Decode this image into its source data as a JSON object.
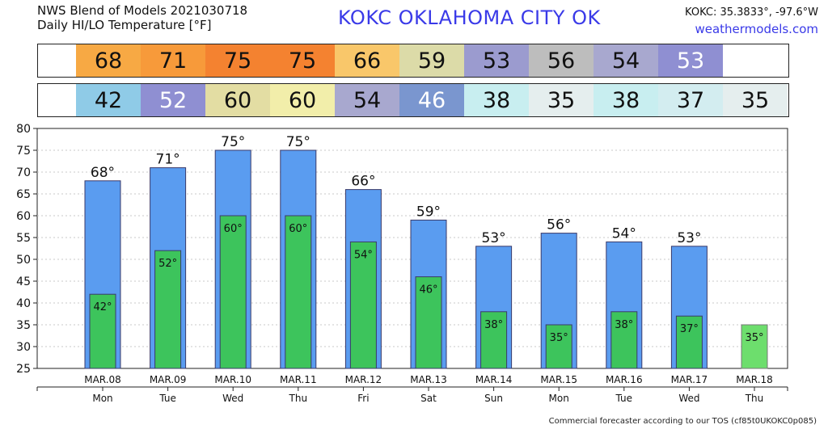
{
  "header": {
    "line1": "NWS Blend of Models 2021030718",
    "line2": "Daily HI/LO Temperature [°F]",
    "title": "KOKC   OKLAHOMA CITY   OK",
    "coords": "KOKC: 35.3833°, -97.6°W",
    "site": "weathermodels.com"
  },
  "hi_strip": [
    {
      "value": "68",
      "color": "#f7a944"
    },
    {
      "value": "71",
      "color": "#f79a3a"
    },
    {
      "value": "75",
      "color": "#f48230"
    },
    {
      "value": "75",
      "color": "#f48230"
    },
    {
      "value": "66",
      "color": "#f9c76a"
    },
    {
      "value": "59",
      "color": "#dcdba8"
    },
    {
      "value": "53",
      "color": "#9b9bcf"
    },
    {
      "value": "56",
      "color": "#bdbdbd"
    },
    {
      "value": "54",
      "color": "#a8a8cf"
    },
    {
      "value": "53",
      "color": "#8f8fd2"
    }
  ],
  "lo_strip": [
    {
      "value": "42",
      "color": "#8fcbe7"
    },
    {
      "value": "52",
      "color": "#8f8fd2"
    },
    {
      "value": "60",
      "color": "#e3dda3"
    },
    {
      "value": "60",
      "color": "#f2eeaa"
    },
    {
      "value": "54",
      "color": "#a8a8cf"
    },
    {
      "value": "46",
      "color": "#7a96cf"
    },
    {
      "value": "38",
      "color": "#c8eef0"
    },
    {
      "value": "35",
      "color": "#e5eeee"
    },
    {
      "value": "38",
      "color": "#c8eef0"
    },
    {
      "value": "37",
      "color": "#d3edf0"
    },
    {
      "value": "35",
      "color": "#e5eeee"
    }
  ],
  "chart_data": {
    "type": "bar",
    "categories": [
      "MAR.08",
      "MAR.09",
      "MAR.10",
      "MAR.11",
      "MAR.12",
      "MAR.13",
      "MAR.14",
      "MAR.15",
      "MAR.16",
      "MAR.17",
      "MAR.18"
    ],
    "days": [
      "Mon",
      "Tue",
      "Wed",
      "Thu",
      "Fri",
      "Sat",
      "Sun",
      "Mon",
      "Tue",
      "Wed",
      "Thu"
    ],
    "series": [
      {
        "name": "HI",
        "values": [
          68,
          71,
          75,
          75,
          66,
          59,
          53,
          56,
          54,
          53,
          null
        ],
        "color": "#5a9cf0"
      },
      {
        "name": "LO",
        "values": [
          42,
          52,
          60,
          60,
          54,
          46,
          38,
          35,
          38,
          37,
          35
        ],
        "color": "#3dc45c"
      }
    ],
    "last_lo_color": "#6dde6d",
    "ylim": [
      25,
      80
    ],
    "yticks": [
      25,
      30,
      35,
      40,
      45,
      50,
      55,
      60,
      65,
      70,
      75,
      80
    ],
    "grid": true,
    "degree_symbol": "°"
  },
  "footer": "Commercial forecaster according to our TOS (cf85t0UKOKC0p085)"
}
